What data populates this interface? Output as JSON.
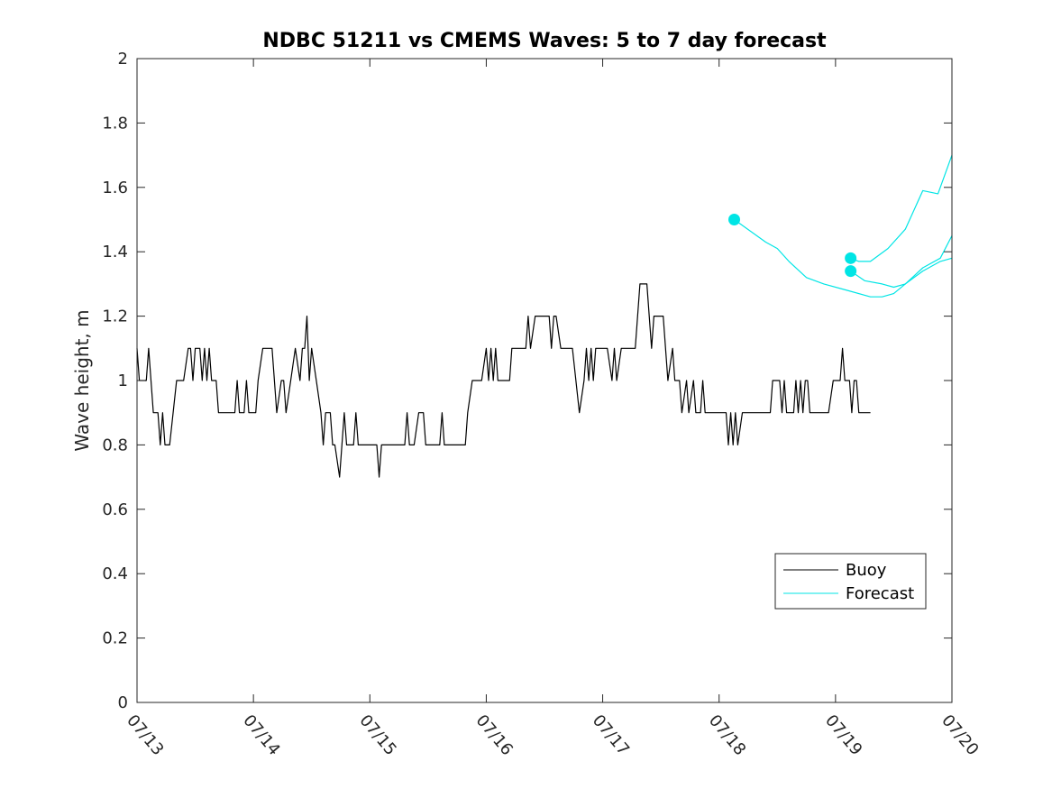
{
  "chart_data": {
    "type": "line",
    "title": "NDBC 51211 vs CMEMS Waves: 5 to 7 day forecast",
    "xlabel": "",
    "ylabel": "Wave height, m",
    "xlim": [
      0,
      7
    ],
    "ylim": [
      0,
      2
    ],
    "x_tick_labels": [
      "07/13",
      "07/14",
      "07/15",
      "07/16",
      "07/17",
      "07/18",
      "07/19",
      "07/20"
    ],
    "y_tick_labels": [
      "0",
      "0.2",
      "0.4",
      "0.6",
      "0.8",
      "1",
      "1.2",
      "1.4",
      "1.6",
      "1.8",
      "2"
    ],
    "grid": false,
    "legend_position": "bottom-right",
    "legend": [
      {
        "label": "Buoy",
        "color": "#000000"
      },
      {
        "label": "Forecast",
        "color": "#00e5e5"
      }
    ],
    "colors": {
      "buoy": "#000000",
      "forecast": "#00e5e5"
    },
    "series": [
      {
        "name": "Buoy",
        "color": "#000000",
        "points": [
          [
            0.0,
            1.1
          ],
          [
            0.02,
            1.0
          ],
          [
            0.08,
            1.0
          ],
          [
            0.1,
            1.1
          ],
          [
            0.14,
            0.9
          ],
          [
            0.18,
            0.9
          ],
          [
            0.2,
            0.8
          ],
          [
            0.22,
            0.9
          ],
          [
            0.24,
            0.8
          ],
          [
            0.28,
            0.8
          ],
          [
            0.34,
            1.0
          ],
          [
            0.4,
            1.0
          ],
          [
            0.44,
            1.1
          ],
          [
            0.46,
            1.1
          ],
          [
            0.48,
            1.0
          ],
          [
            0.5,
            1.1
          ],
          [
            0.54,
            1.1
          ],
          [
            0.56,
            1.0
          ],
          [
            0.58,
            1.1
          ],
          [
            0.6,
            1.0
          ],
          [
            0.62,
            1.1
          ],
          [
            0.64,
            1.0
          ],
          [
            0.68,
            1.0
          ],
          [
            0.7,
            0.9
          ],
          [
            0.84,
            0.9
          ],
          [
            0.86,
            1.0
          ],
          [
            0.88,
            0.9
          ],
          [
            0.92,
            0.9
          ],
          [
            0.94,
            1.0
          ],
          [
            0.96,
            0.9
          ],
          [
            1.02,
            0.9
          ],
          [
            1.04,
            1.0
          ],
          [
            1.08,
            1.1
          ],
          [
            1.16,
            1.1
          ],
          [
            1.2,
            0.9
          ],
          [
            1.24,
            1.0
          ],
          [
            1.26,
            1.0
          ],
          [
            1.28,
            0.9
          ],
          [
            1.32,
            1.0
          ],
          [
            1.36,
            1.1
          ],
          [
            1.4,
            1.0
          ],
          [
            1.42,
            1.1
          ],
          [
            1.44,
            1.1
          ],
          [
            1.46,
            1.2
          ],
          [
            1.48,
            1.0
          ],
          [
            1.5,
            1.1
          ],
          [
            1.54,
            1.0
          ],
          [
            1.58,
            0.9
          ],
          [
            1.6,
            0.8
          ],
          [
            1.62,
            0.9
          ],
          [
            1.66,
            0.9
          ],
          [
            1.68,
            0.8
          ],
          [
            1.7,
            0.8
          ],
          [
            1.74,
            0.7
          ],
          [
            1.78,
            0.9
          ],
          [
            1.8,
            0.8
          ],
          [
            1.86,
            0.8
          ],
          [
            1.88,
            0.9
          ],
          [
            1.9,
            0.8
          ],
          [
            2.02,
            0.8
          ],
          [
            2.06,
            0.8
          ],
          [
            2.08,
            0.7
          ],
          [
            2.1,
            0.8
          ],
          [
            2.3,
            0.8
          ],
          [
            2.32,
            0.9
          ],
          [
            2.34,
            0.8
          ],
          [
            2.38,
            0.8
          ],
          [
            2.42,
            0.9
          ],
          [
            2.46,
            0.9
          ],
          [
            2.48,
            0.8
          ],
          [
            2.6,
            0.8
          ],
          [
            2.62,
            0.9
          ],
          [
            2.64,
            0.8
          ],
          [
            2.82,
            0.8
          ],
          [
            2.84,
            0.9
          ],
          [
            2.88,
            1.0
          ],
          [
            2.96,
            1.0
          ],
          [
            3.0,
            1.1
          ],
          [
            3.02,
            1.0
          ],
          [
            3.04,
            1.1
          ],
          [
            3.06,
            1.0
          ],
          [
            3.08,
            1.1
          ],
          [
            3.1,
            1.0
          ],
          [
            3.2,
            1.0
          ],
          [
            3.22,
            1.1
          ],
          [
            3.34,
            1.1
          ],
          [
            3.36,
            1.2
          ],
          [
            3.38,
            1.1
          ],
          [
            3.42,
            1.2
          ],
          [
            3.54,
            1.2
          ],
          [
            3.56,
            1.1
          ],
          [
            3.58,
            1.2
          ],
          [
            3.6,
            1.2
          ],
          [
            3.64,
            1.1
          ],
          [
            3.74,
            1.1
          ],
          [
            3.8,
            0.9
          ],
          [
            3.84,
            1.0
          ],
          [
            3.86,
            1.1
          ],
          [
            3.88,
            1.0
          ],
          [
            3.9,
            1.1
          ],
          [
            3.92,
            1.0
          ],
          [
            3.94,
            1.1
          ],
          [
            4.04,
            1.1
          ],
          [
            4.08,
            1.0
          ],
          [
            4.1,
            1.1
          ],
          [
            4.12,
            1.0
          ],
          [
            4.16,
            1.1
          ],
          [
            4.28,
            1.1
          ],
          [
            4.32,
            1.3
          ],
          [
            4.38,
            1.3
          ],
          [
            4.42,
            1.1
          ],
          [
            4.44,
            1.2
          ],
          [
            4.52,
            1.2
          ],
          [
            4.56,
            1.0
          ],
          [
            4.6,
            1.1
          ],
          [
            4.62,
            1.0
          ],
          [
            4.66,
            1.0
          ],
          [
            4.68,
            0.9
          ],
          [
            4.72,
            1.0
          ],
          [
            4.74,
            0.9
          ],
          [
            4.78,
            1.0
          ],
          [
            4.8,
            0.9
          ],
          [
            4.84,
            0.9
          ],
          [
            4.86,
            1.0
          ],
          [
            4.88,
            0.9
          ],
          [
            5.06,
            0.9
          ],
          [
            5.08,
            0.8
          ],
          [
            5.1,
            0.9
          ],
          [
            5.12,
            0.8
          ],
          [
            5.14,
            0.9
          ],
          [
            5.16,
            0.8
          ],
          [
            5.2,
            0.9
          ],
          [
            5.44,
            0.9
          ],
          [
            5.46,
            1.0
          ],
          [
            5.52,
            1.0
          ],
          [
            5.54,
            0.9
          ],
          [
            5.56,
            1.0
          ],
          [
            5.58,
            0.9
          ],
          [
            5.64,
            0.9
          ],
          [
            5.66,
            1.0
          ],
          [
            5.68,
            0.9
          ],
          [
            5.7,
            1.0
          ],
          [
            5.72,
            0.9
          ],
          [
            5.74,
            1.0
          ],
          [
            5.76,
            1.0
          ],
          [
            5.78,
            0.9
          ],
          [
            5.94,
            0.9
          ],
          [
            5.98,
            1.0
          ],
          [
            6.04,
            1.0
          ],
          [
            6.06,
            1.1
          ],
          [
            6.08,
            1.0
          ],
          [
            6.12,
            1.0
          ],
          [
            6.14,
            0.9
          ],
          [
            6.16,
            1.0
          ],
          [
            6.18,
            1.0
          ],
          [
            6.2,
            0.9
          ],
          [
            6.3,
            0.9
          ]
        ]
      },
      {
        "name": "Forecast",
        "color": "#00e5e5",
        "marker_at_start": true,
        "points": [
          [
            5.13,
            1.5
          ],
          [
            5.4,
            1.43
          ],
          [
            5.5,
            1.41
          ],
          [
            5.6,
            1.37
          ],
          [
            5.75,
            1.32
          ],
          [
            5.9,
            1.3
          ],
          [
            6.1,
            1.28
          ],
          [
            6.3,
            1.26
          ],
          [
            6.4,
            1.26
          ],
          [
            6.5,
            1.27
          ],
          [
            6.6,
            1.3
          ],
          [
            6.75,
            1.34
          ],
          [
            6.9,
            1.37
          ],
          [
            7.0,
            1.38
          ]
        ]
      },
      {
        "name": "Forecast",
        "color": "#00e5e5",
        "marker_at_start": true,
        "points": [
          [
            6.13,
            1.38
          ],
          [
            6.2,
            1.37
          ],
          [
            6.3,
            1.37
          ],
          [
            6.45,
            1.41
          ],
          [
            6.6,
            1.47
          ],
          [
            6.75,
            1.59
          ],
          [
            6.88,
            1.58
          ],
          [
            7.0,
            1.7
          ]
        ]
      },
      {
        "name": "Forecast",
        "color": "#00e5e5",
        "marker_at_start": true,
        "points": [
          [
            6.13,
            1.34
          ],
          [
            6.25,
            1.31
          ],
          [
            6.4,
            1.3
          ],
          [
            6.5,
            1.29
          ],
          [
            6.6,
            1.3
          ],
          [
            6.75,
            1.35
          ],
          [
            6.9,
            1.38
          ],
          [
            7.0,
            1.45
          ]
        ]
      }
    ]
  }
}
